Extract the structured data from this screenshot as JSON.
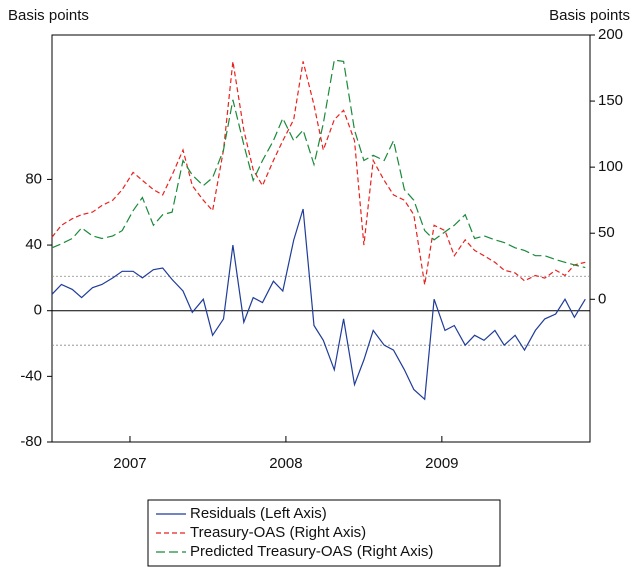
{
  "chart_data": {
    "type": "line",
    "y_axis_label": "Basis points",
    "y2_axis_label": "Basis points",
    "x": [
      2007.0,
      2007.06,
      2007.13,
      2007.19,
      2007.26,
      2007.32,
      2007.39,
      2007.45,
      2007.52,
      2007.58,
      2007.65,
      2007.71,
      2007.77,
      2007.84,
      2007.9,
      2007.97,
      2008.03,
      2008.1,
      2008.16,
      2008.23,
      2008.29,
      2008.35,
      2008.42,
      2008.48,
      2008.55,
      2008.61,
      2008.68,
      2008.74,
      2008.81,
      2008.87,
      2008.94,
      2009.0,
      2009.06,
      2009.13,
      2009.19,
      2009.26,
      2009.32,
      2009.39,
      2009.45,
      2009.52,
      2009.58,
      2009.65,
      2009.71,
      2009.77,
      2009.84,
      2009.9,
      2009.97,
      2010.03,
      2010.1,
      2010.16,
      2010.23,
      2010.29,
      2010.35,
      2010.42
    ],
    "series": [
      {
        "name": "Residuals (Left Axis)",
        "color": "#1f3c99",
        "dash": "solid",
        "axis": "y",
        "values": [
          10,
          16,
          13,
          8,
          14,
          16,
          20,
          24,
          24,
          20,
          25,
          26,
          19,
          12,
          -1,
          7,
          -15,
          -5,
          40,
          -7,
          8,
          5,
          18,
          12,
          43,
          62,
          -9,
          -18,
          -36,
          -5,
          -45,
          -30,
          -12,
          -21,
          -24,
          -36,
          -48,
          -54,
          7,
          -12,
          -9,
          -21,
          -15,
          -18,
          -12,
          -21,
          -15,
          -24,
          -12,
          -5,
          -2,
          7,
          -4,
          7
        ]
      },
      {
        "name": "Treasury-OAS (Right Axis)",
        "color": "#e8231f",
        "dash": "dashed",
        "axis": "y2",
        "values": [
          47,
          56,
          61,
          64,
          66,
          71,
          75,
          83,
          96,
          90,
          83,
          79,
          94,
          113,
          86,
          75,
          67,
          113,
          180,
          128,
          98,
          86,
          105,
          120,
          136,
          180,
          147,
          113,
          136,
          143,
          120,
          41,
          105,
          90,
          79,
          75,
          64,
          11,
          56,
          52,
          33,
          45,
          37,
          33,
          28,
          22,
          20,
          14,
          18,
          16,
          22,
          18,
          26,
          28
        ]
      },
      {
        "name": "Predicted Treasury-OAS (Right Axis)",
        "color": "#1a8a3a",
        "dash": "longdash",
        "axis": "y2",
        "values": [
          39,
          42,
          46,
          54,
          48,
          46,
          48,
          52,
          67,
          77,
          56,
          64,
          66,
          105,
          94,
          86,
          92,
          113,
          151,
          117,
          90,
          105,
          120,
          137,
          120,
          128,
          102,
          133,
          181,
          180,
          128,
          105,
          109,
          105,
          120,
          83,
          75,
          52,
          45,
          51,
          56,
          64,
          46,
          48,
          45,
          43,
          39,
          37,
          33,
          33,
          30,
          28,
          26,
          24
        ]
      }
    ],
    "xlim": [
      2007,
      2010.45
    ],
    "xticks": [
      {
        "value": 2007.5,
        "label": "2007"
      },
      {
        "value": 2008.5,
        "label": "2008"
      },
      {
        "value": 2009.5,
        "label": "2009"
      }
    ],
    "ylim": [
      -80,
      168
    ],
    "yticks": [
      -80,
      -40,
      0,
      40,
      80
    ],
    "y2lim": [
      -108,
      200
    ],
    "y2ticks": [
      0,
      50,
      100,
      150,
      200
    ],
    "hlines": [
      0,
      21,
      -21
    ],
    "legend": "bottom"
  }
}
